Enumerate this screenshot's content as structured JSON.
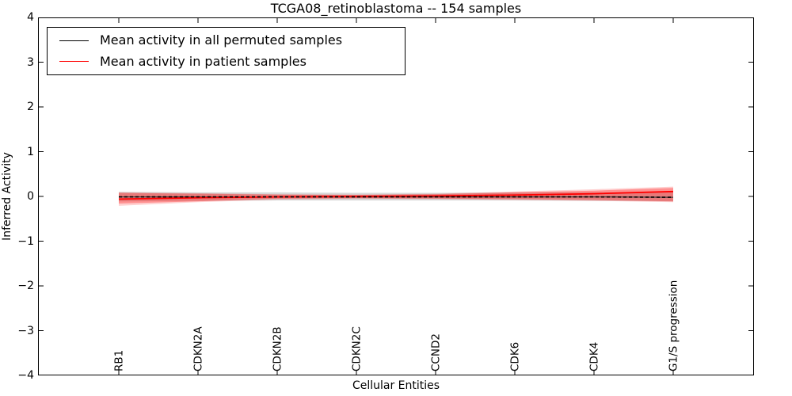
{
  "chart_data": {
    "type": "line",
    "title": "TCGA08_retinoblastoma -- 154 samples",
    "xlabel": "Cellular Entities",
    "ylabel": "Inferred Activity",
    "ylim": [
      -4,
      4
    ],
    "ytick_values": [
      4,
      3,
      2,
      1,
      0,
      -1,
      -2,
      -3,
      -4
    ],
    "ytick_labels": [
      "4",
      "3",
      "2",
      "1",
      "0",
      "−1",
      "−2",
      "−3",
      "−4"
    ],
    "grid": false,
    "legend_position": "upper left",
    "frame": "all-four-spines-ticks-inward",
    "categories": [
      "RB1",
      "CDKN2A",
      "CDKN2B",
      "CDKN2C",
      "CCND2",
      "CDK6",
      "CDK4",
      "G1/S progression"
    ],
    "series": [
      {
        "name": "Mean activity in all permuted samples",
        "color": "#000000",
        "line_style": "dashed-over-solid",
        "values": [
          -0.01,
          -0.01,
          -0.01,
          -0.01,
          -0.01,
          -0.01,
          -0.01,
          -0.02
        ]
      },
      {
        "name": "Mean activity in patient samples",
        "color": "#ff0000",
        "line_style": "solid",
        "values": [
          -0.06,
          -0.03,
          -0.01,
          0.0,
          0.01,
          0.03,
          0.06,
          0.11
        ]
      }
    ],
    "bands": [
      {
        "name": "permuted-samples",
        "color": "#999999",
        "opacity": 0.4,
        "upper": [
          0.1,
          0.09,
          0.09,
          0.08,
          0.08,
          0.09,
          0.09,
          0.1
        ],
        "lower": [
          -0.11,
          -0.1,
          -0.09,
          -0.09,
          -0.09,
          -0.09,
          -0.1,
          -0.11
        ]
      },
      {
        "name": "patient-samples-outer",
        "color": "#ff0000",
        "opacity": 0.18,
        "upper": [
          0.09,
          0.07,
          0.05,
          0.04,
          0.06,
          0.11,
          0.16,
          0.22
        ],
        "lower": [
          -0.21,
          -0.13,
          -0.07,
          -0.05,
          -0.06,
          -0.08,
          -0.1,
          -0.13
        ]
      },
      {
        "name": "patient-samples-inner",
        "color": "#ff0000",
        "opacity": 0.3,
        "upper": [
          0.08,
          0.06,
          0.04,
          0.03,
          0.05,
          0.09,
          0.13,
          0.19
        ],
        "lower": [
          -0.16,
          -0.11,
          -0.05,
          -0.04,
          -0.05,
          -0.06,
          -0.08,
          -0.11
        ]
      }
    ]
  }
}
